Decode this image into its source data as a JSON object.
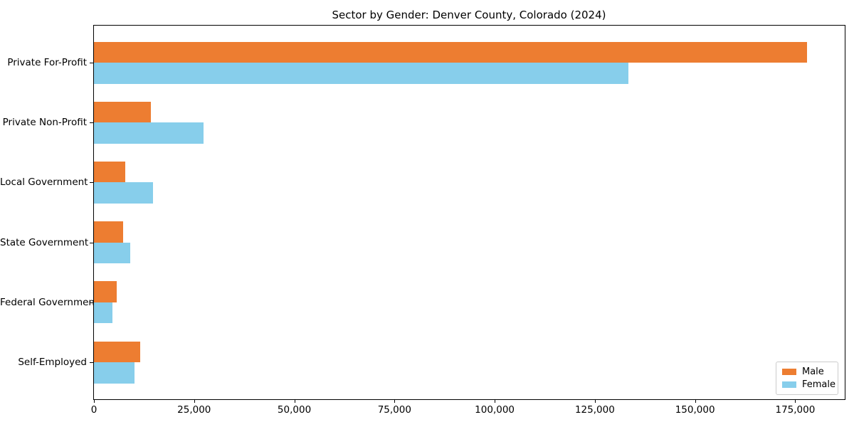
{
  "title": "Sector by Gender: Denver County, Colorado (2024)",
  "colors": {
    "male": "#ED7D31",
    "female": "#87CEEB",
    "spine": "#000000",
    "legend_border": "#cccccc",
    "text": "#000000"
  },
  "chart_data": {
    "type": "bar",
    "orientation": "horizontal",
    "title": "Sector by Gender: Denver County, Colorado (2024)",
    "categories": [
      "Private For-Profit",
      "Private Non-Profit",
      "Local Government",
      "State Government",
      "Federal Government",
      "Self-Employed"
    ],
    "series": [
      {
        "name": "Male",
        "color": "#ED7D31",
        "values": [
          178000,
          14200,
          7900,
          7200,
          5600,
          11600
        ]
      },
      {
        "name": "Female",
        "color": "#87CEEB",
        "values": [
          133400,
          27300,
          14700,
          9100,
          4600,
          10100
        ]
      }
    ],
    "xlabel": "",
    "ylabel": "",
    "xlim": [
      0,
      187000
    ],
    "xticks": [
      0,
      25000,
      50000,
      75000,
      100000,
      125000,
      150000,
      175000
    ],
    "xtick_labels": [
      "0",
      "25,000",
      "50,000",
      "75,000",
      "100,000",
      "125,000",
      "150,000",
      "175,000"
    ],
    "grid": false,
    "legend_position": "lower right"
  },
  "legend": {
    "items": [
      {
        "label": "Male",
        "color": "#ED7D31"
      },
      {
        "label": "Female",
        "color": "#87CEEB"
      }
    ]
  }
}
